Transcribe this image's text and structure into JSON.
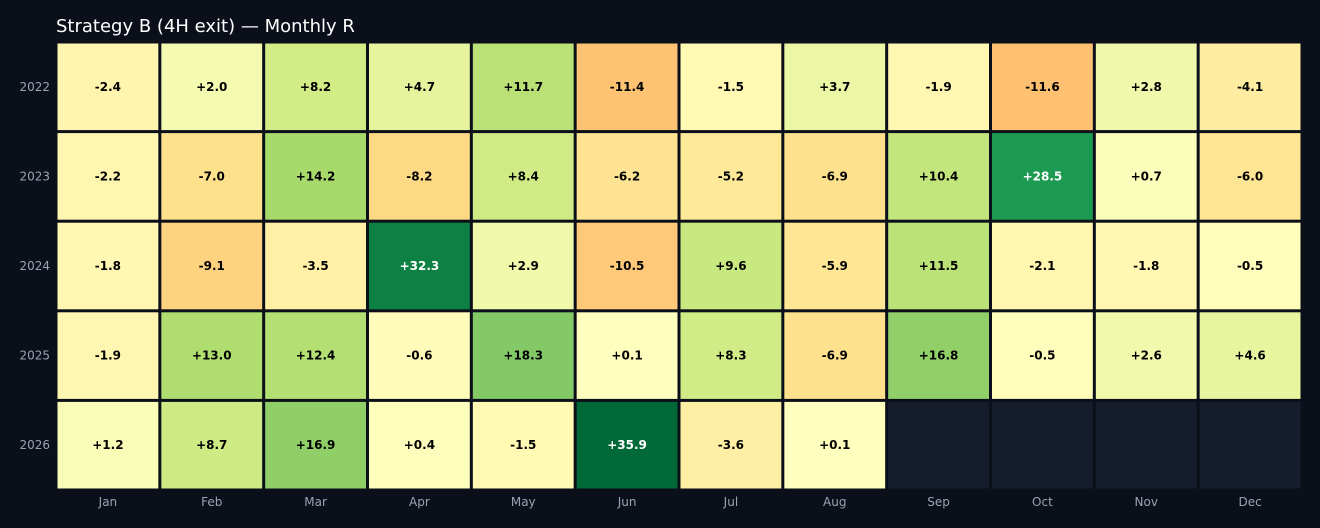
{
  "chart_data": {
    "type": "heatmap",
    "title": "Strategy B (4H exit) — Monthly R",
    "xlabel": "",
    "ylabel": "",
    "legend": "none",
    "grid": false,
    "x_categories": [
      "Jan",
      "Feb",
      "Mar",
      "Apr",
      "May",
      "Jun",
      "Jul",
      "Aug",
      "Sep",
      "Oct",
      "Nov",
      "Dec"
    ],
    "y_categories": [
      "2022",
      "2023",
      "2024",
      "2025",
      "2026"
    ],
    "values": [
      [
        -2.4,
        2.0,
        8.2,
        4.7,
        11.7,
        -11.4,
        -1.5,
        3.7,
        -1.9,
        -11.6,
        2.8,
        -4.1
      ],
      [
        -2.2,
        -7.0,
        14.2,
        -8.2,
        8.4,
        -6.2,
        -5.2,
        -6.9,
        10.4,
        28.5,
        0.7,
        -6.0
      ],
      [
        -1.8,
        -9.1,
        -3.5,
        32.3,
        2.9,
        -10.5,
        9.6,
        -5.9,
        11.5,
        -2.1,
        -1.8,
        -0.5
      ],
      [
        -1.9,
        13.0,
        12.4,
        -0.6,
        18.3,
        0.1,
        8.3,
        -6.9,
        16.8,
        -0.5,
        2.6,
        4.6
      ],
      [
        1.2,
        8.7,
        16.9,
        0.4,
        -1.5,
        35.9,
        -3.6,
        0.1,
        null,
        null,
        null,
        null
      ]
    ],
    "labels": [
      [
        "-2.4",
        "+2.0",
        "+8.2",
        "+4.7",
        "+11.7",
        "-11.4",
        "-1.5",
        "+3.7",
        "-1.9",
        "-11.6",
        "+2.8",
        "-4.1"
      ],
      [
        "-2.2",
        "-7.0",
        "+14.2",
        "-8.2",
        "+8.4",
        "-6.2",
        "-5.2",
        "-6.9",
        "+10.4",
        "+28.5",
        "+0.7",
        "-6.0"
      ],
      [
        "-1.8",
        "-9.1",
        "-3.5",
        "+32.3",
        "+2.9",
        "-10.5",
        "+9.6",
        "-5.9",
        "+11.5",
        "-2.1",
        "-1.8",
        "-0.5"
      ],
      [
        "-1.9",
        "+13.0",
        "+12.4",
        "-0.6",
        "+18.3",
        "+0.1",
        "+8.3",
        "-6.9",
        "+16.8",
        "-0.5",
        "+2.6",
        "+4.6"
      ],
      [
        "+1.2",
        "+8.7",
        "+16.9",
        "+0.4",
        "-1.5",
        "+35.9",
        "-3.6",
        "+0.1",
        "",
        "",
        "",
        ""
      ]
    ],
    "colormap": "RdYlGn",
    "color_range": [
      -36,
      36
    ],
    "missing_color": "#151c2c"
  }
}
